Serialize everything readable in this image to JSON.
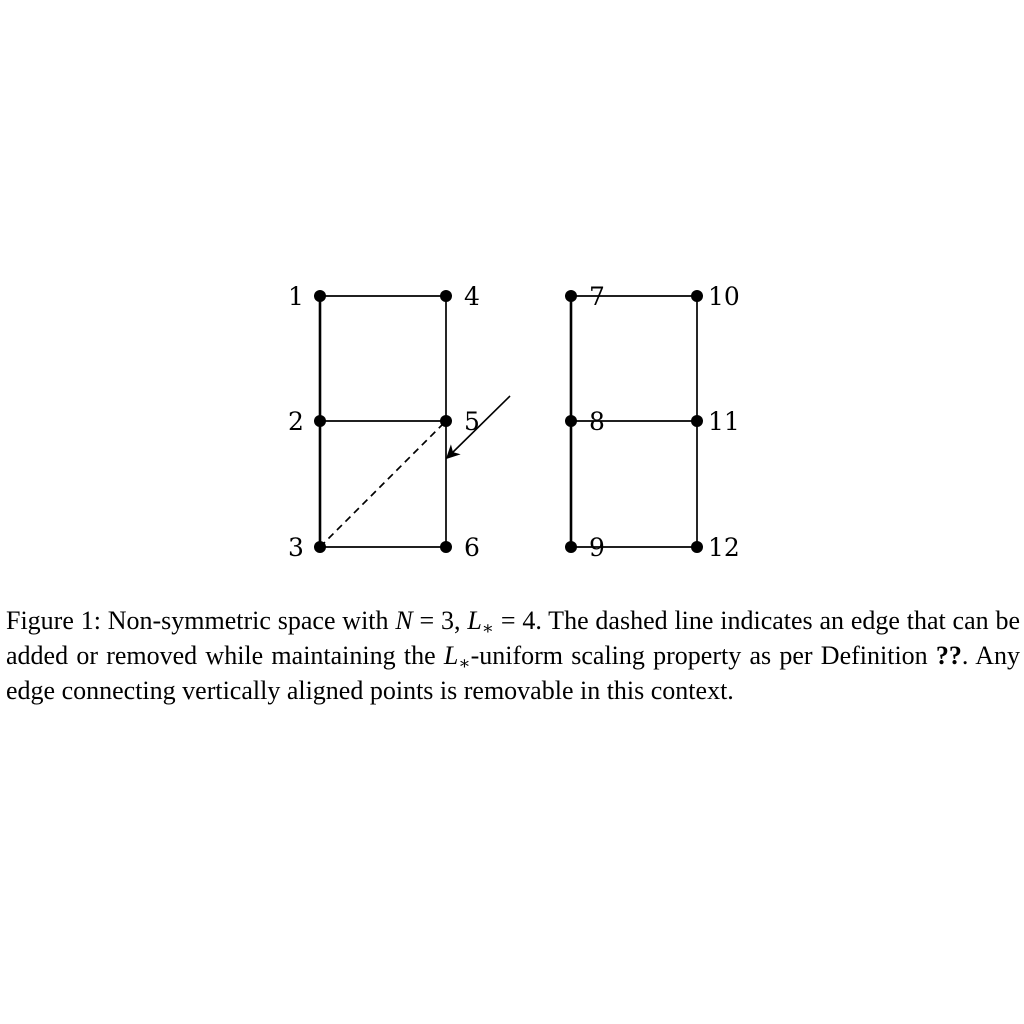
{
  "diagram": {
    "nodes": [
      {
        "id": "1",
        "label": "1"
      },
      {
        "id": "2",
        "label": "2"
      },
      {
        "id": "3",
        "label": "3"
      },
      {
        "id": "4",
        "label": "4"
      },
      {
        "id": "5",
        "label": "5"
      },
      {
        "id": "6",
        "label": "6"
      },
      {
        "id": "7",
        "label": "7"
      },
      {
        "id": "8",
        "label": "8"
      },
      {
        "id": "9",
        "label": "9"
      },
      {
        "id": "10",
        "label": "10"
      },
      {
        "id": "11",
        "label": "11"
      },
      {
        "id": "12",
        "label": "12"
      }
    ],
    "edges": [
      {
        "from": "1",
        "to": "4",
        "style": "solid"
      },
      {
        "from": "1",
        "to": "2",
        "style": "solid"
      },
      {
        "from": "2",
        "to": "3",
        "style": "solid"
      },
      {
        "from": "4",
        "to": "5",
        "style": "solid"
      },
      {
        "from": "5",
        "to": "6",
        "style": "solid"
      },
      {
        "from": "2",
        "to": "5",
        "style": "solid"
      },
      {
        "from": "3",
        "to": "6",
        "style": "solid"
      },
      {
        "from": "3",
        "to": "5",
        "style": "dashed"
      },
      {
        "from": "7",
        "to": "10",
        "style": "solid"
      },
      {
        "from": "7",
        "to": "8",
        "style": "solid"
      },
      {
        "from": "8",
        "to": "9",
        "style": "solid"
      },
      {
        "from": "10",
        "to": "11",
        "style": "solid"
      },
      {
        "from": "11",
        "to": "12",
        "style": "solid"
      },
      {
        "from": "8",
        "to": "11",
        "style": "solid"
      },
      {
        "from": "9",
        "to": "12",
        "style": "solid"
      }
    ],
    "annotation_arrow": {
      "points_to": "dashed edge 3-5"
    }
  },
  "caption": {
    "prefix": "Figure 1: Non-symmetric space with ",
    "n_var": "N",
    "n_eq": " = 3, ",
    "l_var": "L",
    "l_sub": "∗",
    "l_eq": " = 4. The dashed line indicates an edge that can be added or removed while maintaining the ",
    "l_var2": "L",
    "l_sub2": "∗",
    "mid": "-uniform scaling property as per Definition ",
    "ref": "??",
    "suffix": ". Any edge connecting vertically aligned points is removable in this context."
  }
}
